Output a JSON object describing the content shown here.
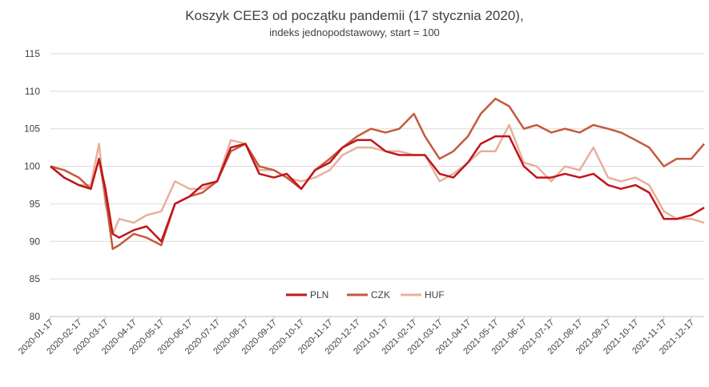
{
  "chart_data": {
    "type": "line",
    "title": "Koszyk CEE3 od początku pandemii (17 stycznia 2020),",
    "subtitle": "indeks jednopodstawowy, start = 100",
    "xlabel": "",
    "ylabel": "",
    "ylim": [
      80,
      115
    ],
    "yticks": [
      "80",
      "85",
      "90",
      "95",
      "100",
      "105",
      "110",
      "115"
    ],
    "grid": "horizontal",
    "legend_position": "bottom-center",
    "x_tick_labels": [
      "2020-01-17",
      "2020-02-17",
      "2020-03-17",
      "2020-04-17",
      "2020-05-17",
      "2020-06-17",
      "2020-07-17",
      "2020-08-17",
      "2020-09-17",
      "2020-10-17",
      "2020-11-17",
      "2020-12-17",
      "2021-01-17",
      "2021-02-17",
      "2021-03-17",
      "2021-04-17",
      "2021-05-17",
      "2021-06-17",
      "2021-07-17",
      "2021-08-17",
      "2021-09-17",
      "2021-10-17",
      "2021-11-17",
      "2021-12-17"
    ],
    "x": [
      "2020-01-17",
      "2020-02-01",
      "2020-02-17",
      "2020-03-01",
      "2020-03-10",
      "2020-03-17",
      "2020-03-25",
      "2020-04-01",
      "2020-04-17",
      "2020-05-01",
      "2020-05-17",
      "2020-06-01",
      "2020-06-17",
      "2020-07-01",
      "2020-07-17",
      "2020-08-01",
      "2020-08-17",
      "2020-09-01",
      "2020-09-17",
      "2020-10-01",
      "2020-10-17",
      "2020-11-01",
      "2020-11-17",
      "2020-12-01",
      "2020-12-17",
      "2021-01-01",
      "2021-01-17",
      "2021-02-01",
      "2021-02-17",
      "2021-03-01",
      "2021-03-17",
      "2021-04-01",
      "2021-04-17",
      "2021-05-01",
      "2021-05-17",
      "2021-06-01",
      "2021-06-17",
      "2021-07-01",
      "2021-07-17",
      "2021-08-01",
      "2021-08-17",
      "2021-09-01",
      "2021-09-17",
      "2021-10-01",
      "2021-10-17",
      "2021-11-01",
      "2021-11-17",
      "2021-12-01",
      "2021-12-17",
      "2021-12-31"
    ],
    "series": [
      {
        "name": "PLN",
        "color": "#c0161b",
        "values": [
          100,
          98.5,
          97.5,
          97,
          101,
          97,
          91,
          90.5,
          91.5,
          92,
          90,
          95,
          96,
          97.5,
          98,
          102.5,
          103,
          99,
          98.5,
          99,
          97,
          99.5,
          100.5,
          102.5,
          103.5,
          103.5,
          102,
          101.5,
          101.5,
          101.5,
          99,
          98.5,
          100.5,
          103,
          104,
          104,
          100,
          98.5,
          98.5,
          99,
          98.5,
          99,
          97.5,
          97,
          97.5,
          96.5,
          93,
          93,
          93.5,
          94.5
        ]
      },
      {
        "name": "CZK",
        "color": "#c45a3c",
        "values": [
          100,
          99.5,
          98.5,
          97,
          101,
          96,
          89,
          89.5,
          91,
          90.5,
          89.5,
          95,
          96,
          96.5,
          98,
          102,
          103,
          100,
          99.5,
          98.5,
          97,
          99.5,
          101,
          102.5,
          104,
          105,
          104.5,
          105,
          107,
          104,
          101,
          102,
          104,
          107,
          109,
          108,
          105,
          105.5,
          104.5,
          105,
          104.5,
          105.5,
          105,
          104.5,
          103.5,
          102.5,
          100,
          101,
          101,
          103
        ]
      },
      {
        "name": "HUF",
        "color": "#e8b09b",
        "values": [
          100,
          98.5,
          97.5,
          97.5,
          103,
          95,
          91,
          93,
          92.5,
          93.5,
          94,
          98,
          97,
          97,
          98,
          103.5,
          103,
          99.5,
          99.5,
          98.5,
          98,
          98.5,
          99.5,
          101.5,
          102.5,
          102.5,
          102,
          102,
          101.5,
          101.5,
          98,
          99,
          100.5,
          102,
          102,
          105.5,
          100.5,
          100,
          98,
          100,
          99.5,
          102.5,
          98.5,
          98,
          98.5,
          97.5,
          94,
          93,
          93,
          92.5
        ]
      }
    ]
  }
}
